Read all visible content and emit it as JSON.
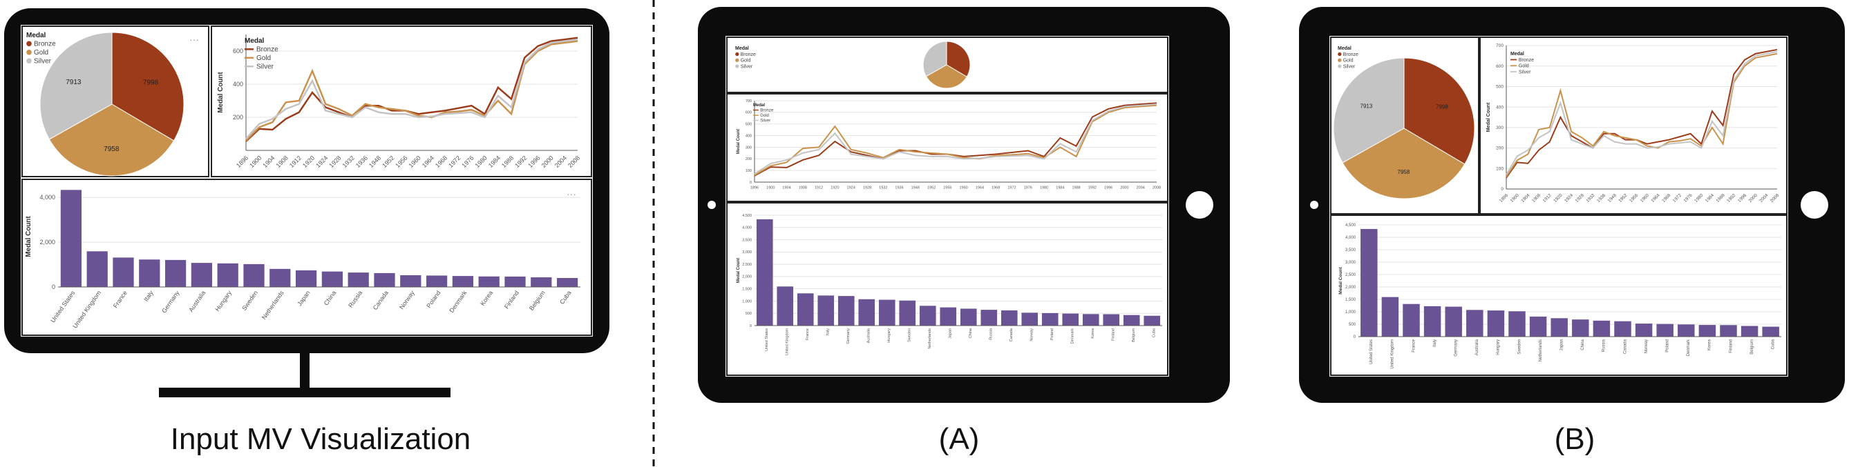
{
  "captions": {
    "input": "Input MV Visualization",
    "a": "(A)",
    "b": "(B)"
  },
  "colors": {
    "device": "#0c0c0c",
    "bronze": "#9c3b1a",
    "gold": "#c9924c",
    "silver": "#c4c4c4",
    "bar": "#6a5394",
    "grid": "#e3e3e3",
    "axis": "#555555"
  },
  "legend": {
    "title": "Medal",
    "items": [
      "Bronze",
      "Gold",
      "Silver"
    ]
  },
  "charts": {
    "pie": {
      "type": "pie",
      "slices": [
        {
          "name": "Bronze",
          "value": 7998,
          "label": "7998"
        },
        {
          "name": "Gold",
          "value": 7958,
          "label": "7958"
        },
        {
          "name": "Silver",
          "value": 7913,
          "label": "7913"
        }
      ]
    },
    "line": {
      "type": "line",
      "ylabel": "Medal Count",
      "ylim": [
        0,
        700
      ],
      "yticks": [
        0,
        100,
        200,
        300,
        400,
        500,
        600,
        700
      ],
      "yticks_desktop": [
        200,
        400,
        600
      ],
      "x": [
        1896,
        1900,
        1904,
        1908,
        1912,
        1920,
        1924,
        1928,
        1932,
        1936,
        1948,
        1952,
        1956,
        1960,
        1964,
        1968,
        1972,
        1976,
        1980,
        1984,
        1988,
        1992,
        1996,
        2000,
        2004,
        2008
      ],
      "xlabels_desktop": [
        "1896",
        "1900",
        "1904",
        "1908",
        "1912",
        "1920",
        "1924",
        "1928",
        "1932",
        "1936",
        "1948",
        "1952",
        "1956",
        "1960",
        "1964",
        "1968",
        "1972",
        "1976",
        "1980",
        "1984",
        "1988",
        "1992",
        "1996",
        "2000",
        "2004",
        "2008"
      ],
      "xlabels_a": [
        "1896",
        "1900",
        "1904",
        "1908",
        "1912",
        "1920",
        "1924",
        "1928",
        "1932",
        "1936",
        "1948",
        "1952",
        "1956",
        "1960",
        "1964",
        "1968",
        "1972",
        "1976",
        "1980",
        "1984",
        "1988",
        "1992",
        "1996",
        "2000",
        "2004",
        "2008"
      ],
      "xlabels_b": [
        "1896",
        "1900",
        "1904",
        "1908",
        "1912",
        "1920",
        "1924",
        "1928",
        "1932",
        "1936",
        "1948",
        "1952",
        "1956",
        "1960",
        "1964",
        "1968",
        "1972",
        "1976",
        "1980",
        "1984",
        "1988",
        "1992",
        "1996",
        "2000",
        "2004",
        "2008"
      ],
      "series": [
        {
          "name": "Bronze",
          "values": [
            55,
            130,
            125,
            190,
            230,
            350,
            260,
            230,
            200,
            270,
            270,
            240,
            240,
            220,
            230,
            240,
            255,
            270,
            220,
            380,
            310,
            560,
            630,
            660,
            670,
            680
          ]
        },
        {
          "name": "Gold",
          "values": [
            60,
            140,
            170,
            290,
            300,
            480,
            280,
            250,
            210,
            280,
            260,
            250,
            240,
            210,
            200,
            230,
            235,
            245,
            210,
            300,
            220,
            520,
            600,
            640,
            650,
            660
          ]
        },
        {
          "name": "Silver",
          "values": [
            70,
            160,
            190,
            250,
            280,
            420,
            240,
            220,
            200,
            260,
            230,
            220,
            220,
            200,
            205,
            220,
            225,
            230,
            200,
            330,
            260,
            530,
            610,
            650,
            660,
            670
          ]
        }
      ]
    },
    "bar": {
      "type": "bar",
      "ylabel": "Medal Count",
      "ylim": [
        0,
        4500
      ],
      "yticks_desktop": [
        0,
        2000,
        4000
      ],
      "yticks_desktop_labels": [
        "0",
        "2,000",
        "4,000"
      ],
      "yticks_tablet": [
        0,
        500,
        1000,
        1500,
        2000,
        2500,
        3000,
        3500,
        4000,
        4500
      ],
      "yticks_tablet_labels": [
        "0",
        "500",
        "1,000",
        "1,500",
        "2,000",
        "2,500",
        "3,000",
        "3,500",
        "4,000",
        "4,500"
      ],
      "categories": [
        "United States",
        "United Kingdom",
        "France",
        "Italy",
        "Germany",
        "Australia",
        "Hungary",
        "Sweden",
        "Netherlands",
        "Japan",
        "China",
        "Russia",
        "Canada",
        "Norway",
        "Poland",
        "Denmark",
        "Korea",
        "Finland",
        "Belgium",
        "Cuba"
      ],
      "values": [
        4335,
        1594,
        1314,
        1226,
        1206,
        1075,
        1053,
        1021,
        807,
        742,
        690,
        644,
        620,
        525,
        510,
        490,
        470,
        465,
        430,
        400
      ]
    }
  }
}
